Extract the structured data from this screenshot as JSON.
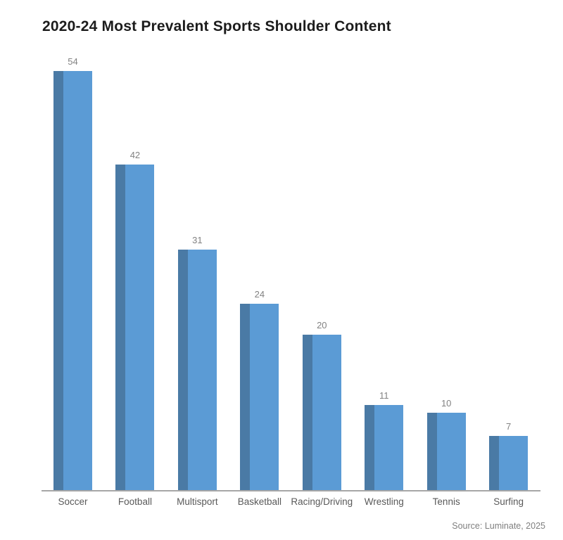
{
  "chart_data": {
    "type": "bar",
    "title": "2020-24 Most Prevalent Sports Shoulder Content",
    "categories": [
      "Soccer",
      "Football",
      "Multisport",
      "Basketball",
      "Racing/Driving",
      "Wrestling",
      "Tennis",
      "Surfing"
    ],
    "values": [
      54,
      42,
      31,
      24,
      20,
      11,
      10,
      7
    ],
    "xlabel": "",
    "ylabel": "",
    "ylim": [
      0,
      54
    ],
    "grid": false,
    "legend": "none",
    "data_labels": "above-bars",
    "source": "Source: Luminate, 2025",
    "colors": {
      "bar_body": "#5b9bd5",
      "bar_left_band": "#4a7aa5",
      "axis_line": "#a6a6a6",
      "title_text": "#1c1c1c",
      "value_label_text": "#828282",
      "category_label_text": "#595959",
      "source_text": "#7f7f7f",
      "background": "#ffffff"
    }
  }
}
